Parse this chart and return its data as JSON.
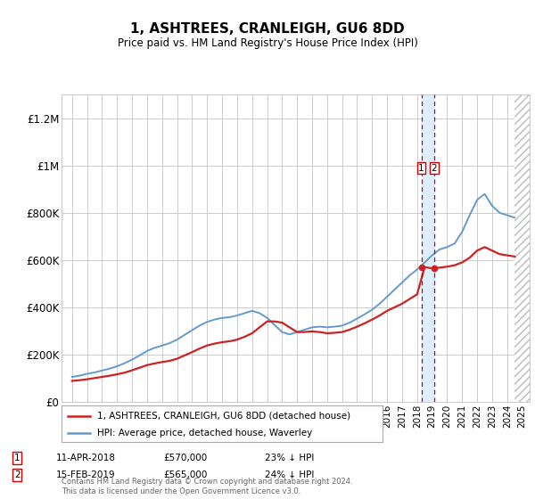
{
  "title": "1, ASHTREES, CRANLEIGH, GU6 8DD",
  "subtitle": "Price paid vs. HM Land Registry's House Price Index (HPI)",
  "hpi_label": "HPI: Average price, detached house, Waverley",
  "property_label": "1, ASHTREES, CRANLEIGH, GU6 8DD (detached house)",
  "footer": "Contains HM Land Registry data © Crown copyright and database right 2024.\nThis data is licensed under the Open Government Licence v3.0.",
  "transaction1_date": "11-APR-2018",
  "transaction1_price": "£570,000",
  "transaction1_note": "23% ↓ HPI",
  "transaction2_date": "15-FEB-2019",
  "transaction2_price": "£565,000",
  "transaction2_note": "24% ↓ HPI",
  "t1_x": 2018.28,
  "t2_x": 2019.12,
  "t1_y": 570000,
  "t2_y": 565000,
  "hpi_color": "#6699cc",
  "property_color": "#cc2222",
  "vline_color": "#cc0000",
  "highlight_color": "#ddeeff",
  "ylim": [
    0,
    1300000
  ],
  "xlim_start": 1994.3,
  "xlim_end": 2025.5,
  "hpi_x": [
    1995.0,
    1995.5,
    1996.0,
    1996.5,
    1997.0,
    1997.5,
    1998.0,
    1998.5,
    1999.0,
    1999.5,
    2000.0,
    2000.5,
    2001.0,
    2001.5,
    2002.0,
    2002.5,
    2003.0,
    2003.5,
    2004.0,
    2004.5,
    2005.0,
    2005.5,
    2006.0,
    2006.5,
    2007.0,
    2007.5,
    2008.0,
    2008.5,
    2009.0,
    2009.5,
    2010.0,
    2010.5,
    2011.0,
    2011.5,
    2012.0,
    2012.5,
    2013.0,
    2013.5,
    2014.0,
    2014.5,
    2015.0,
    2015.5,
    2016.0,
    2016.5,
    2017.0,
    2017.5,
    2018.0,
    2018.5,
    2019.0,
    2019.5,
    2020.0,
    2020.5,
    2021.0,
    2021.5,
    2022.0,
    2022.5,
    2023.0,
    2023.5,
    2024.0,
    2024.5
  ],
  "hpi_y": [
    105000,
    110000,
    118000,
    124000,
    132000,
    140000,
    150000,
    163000,
    178000,
    196000,
    215000,
    228000,
    238000,
    248000,
    263000,
    283000,
    303000,
    322000,
    338000,
    348000,
    355000,
    358000,
    365000,
    375000,
    385000,
    375000,
    355000,
    325000,
    295000,
    285000,
    295000,
    305000,
    315000,
    318000,
    315000,
    318000,
    322000,
    335000,
    352000,
    370000,
    390000,
    415000,
    445000,
    475000,
    505000,
    535000,
    560000,
    590000,
    620000,
    645000,
    655000,
    670000,
    720000,
    790000,
    855000,
    880000,
    830000,
    800000,
    790000,
    780000
  ],
  "prop_x": [
    1995.0,
    1995.5,
    1996.0,
    1996.5,
    1997.0,
    1997.5,
    1998.0,
    1998.5,
    1999.0,
    1999.5,
    2000.0,
    2000.5,
    2001.0,
    2001.5,
    2002.0,
    2002.5,
    2003.0,
    2003.5,
    2004.0,
    2004.5,
    2005.0,
    2005.5,
    2006.0,
    2006.5,
    2007.0,
    2007.5,
    2008.0,
    2008.5,
    2009.0,
    2009.5,
    2010.0,
    2010.5,
    2011.0,
    2011.5,
    2012.0,
    2012.5,
    2013.0,
    2013.5,
    2014.0,
    2014.5,
    2015.0,
    2015.5,
    2016.0,
    2016.5,
    2017.0,
    2017.5,
    2018.0,
    2018.5,
    2019.0,
    2019.5,
    2020.0,
    2020.5,
    2021.0,
    2021.5,
    2022.0,
    2022.5,
    2023.0,
    2023.5,
    2024.0,
    2024.5
  ],
  "prop_y": [
    88000,
    91000,
    95000,
    100000,
    105000,
    110000,
    116000,
    123000,
    133000,
    144000,
    155000,
    162000,
    168000,
    173000,
    182000,
    196000,
    210000,
    225000,
    238000,
    246000,
    252000,
    256000,
    263000,
    275000,
    290000,
    315000,
    340000,
    340000,
    335000,
    315000,
    295000,
    295000,
    298000,
    295000,
    290000,
    292000,
    295000,
    305000,
    318000,
    332000,
    348000,
    365000,
    385000,
    400000,
    415000,
    435000,
    455000,
    570000,
    565000,
    568000,
    572000,
    578000,
    590000,
    610000,
    640000,
    655000,
    640000,
    625000,
    620000,
    615000
  ]
}
